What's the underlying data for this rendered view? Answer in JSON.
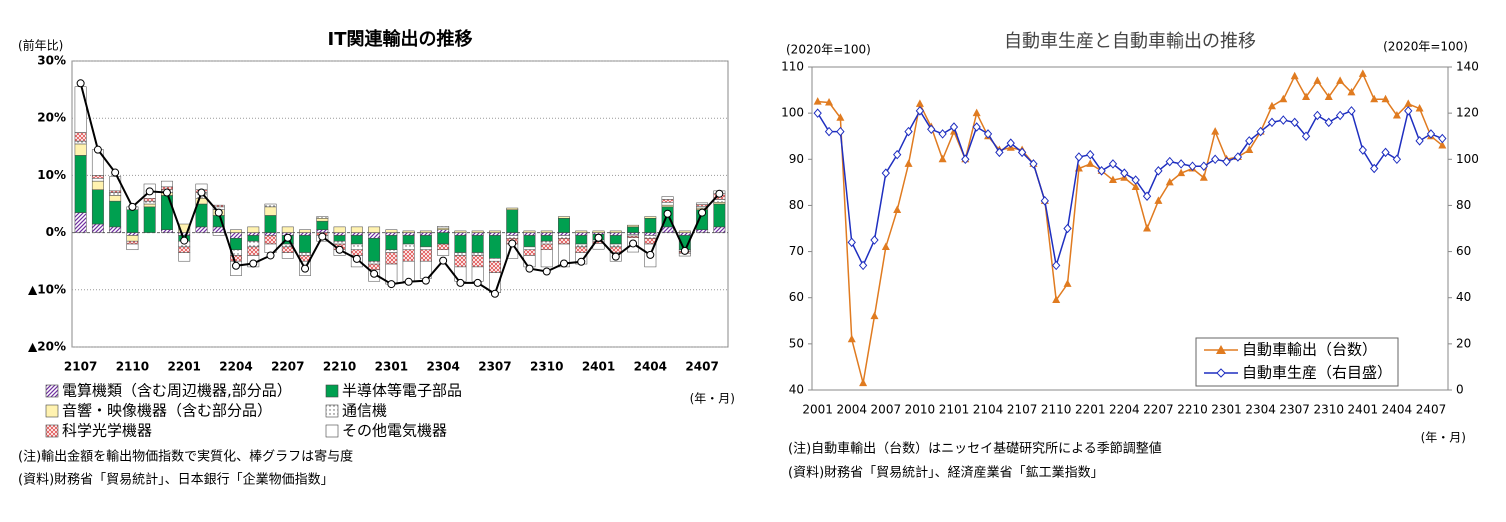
{
  "chart_data": [
    {
      "type": "bar",
      "stacked": true,
      "title": "IT関連輸出の推移",
      "y_label": "(前年比)",
      "x_label": "(年・月)",
      "categories": [
        "2107",
        null,
        null,
        "2110",
        null,
        null,
        "2201",
        null,
        null,
        "2204",
        null,
        null,
        "2207",
        null,
        null,
        "2210",
        null,
        null,
        "2301",
        null,
        null,
        "2304",
        null,
        null,
        "2307",
        null,
        null,
        "2310",
        null,
        null,
        "2401",
        null,
        null,
        "2404",
        null,
        null,
        "2407",
        null
      ],
      "ylim": [
        -20,
        30
      ],
      "yticks": [
        {
          "value": 30,
          "label": "30%"
        },
        {
          "value": 20,
          "label": "20%"
        },
        {
          "value": 10,
          "label": "10%"
        },
        {
          "value": 0,
          "label": "0%"
        },
        {
          "value": -10,
          "label": "▲10%"
        },
        {
          "value": -20,
          "label": "▲20%"
        }
      ],
      "grid": true,
      "series": [
        {
          "name": "電算機類（含む周辺機器,部分品）",
          "color": "#7030a0",
          "pattern": "hatch",
          "values": [
            3.5,
            1.5,
            1,
            -0.5,
            0,
            0.5,
            -0.5,
            1,
            1,
            -1,
            -0.5,
            -0.5,
            -0.5,
            -0.5,
            0.5,
            -0.5,
            -0.5,
            -1,
            -0.5,
            -0.5,
            -0.5,
            0.5,
            -0.5,
            -0.5,
            -0.5,
            -0.5,
            -0.5,
            -0.5,
            -0.5,
            -0.5,
            -0.3,
            -0.5,
            -0.3,
            -0.5,
            1,
            -0.5,
            0.5,
            1
          ]
        },
        {
          "name": "半導体等電子部品",
          "color": "#00a050",
          "pattern": "solid",
          "values": [
            10,
            6,
            4.5,
            4,
            4.5,
            6,
            -1,
            4,
            2,
            -2,
            -1,
            3,
            -1.5,
            -3,
            1.5,
            -1,
            -1.5,
            -4,
            -2.5,
            -1.5,
            -2,
            -2,
            -3,
            -3,
            -4,
            4,
            -2,
            -1,
            2.5,
            -1.5,
            -1,
            -1.5,
            1,
            2.5,
            3.5,
            -2.5,
            3.5,
            4
          ]
        },
        {
          "name": "音響・映像機器（含む部分品）",
          "color": "#fff2b0",
          "pattern": "solid",
          "values": [
            2,
            1.5,
            1,
            -1,
            0.5,
            0.5,
            1.5,
            1,
            1,
            0.5,
            1,
            1.5,
            1,
            0.5,
            0.5,
            1,
            1,
            1,
            0.5,
            0.3,
            0.3,
            0.3,
            0.3,
            0.3,
            0.3,
            0.3,
            0.3,
            0.3,
            0.3,
            0.3,
            0.3,
            0.3,
            0.3,
            0.3,
            0.3,
            0.3,
            0.3,
            0.3
          ]
        },
        {
          "name": "通信機",
          "color": "#555555",
          "pattern": "dots",
          "values": [
            0.5,
            0.5,
            0.5,
            0.5,
            0.5,
            0.5,
            -1,
            1,
            0.5,
            -1,
            -1,
            0.5,
            -0.5,
            -0.5,
            0.3,
            -0.5,
            -1,
            -0.5,
            -0.5,
            -1,
            -0.5,
            0.3,
            -0.5,
            -0.5,
            -0.5,
            -0.5,
            -0.5,
            -0.5,
            -0.5,
            -0.5,
            -0.3,
            -0.5,
            -0.3,
            -0.5,
            0.5,
            -0.3,
            0.3,
            0.5
          ]
        },
        {
          "name": "科学光学機器",
          "color": "#e05050",
          "pattern": "cross",
          "values": [
            1.5,
            0.5,
            0.3,
            -0.5,
            0.5,
            0.5,
            -1,
            0.5,
            0.3,
            -1,
            -1.5,
            -1.5,
            -1,
            -1,
            -0.5,
            -1,
            -1,
            -1,
            -2,
            -2,
            -2,
            -1,
            -2,
            -2,
            -2,
            -1,
            -1,
            -1,
            -1,
            -1,
            -0.3,
            -1,
            -0.3,
            -1,
            0.5,
            -0.3,
            0.3,
            1
          ]
        },
        {
          "name": "その他電気機器",
          "color": "#ffffff",
          "pattern": "solid",
          "values": [
            8,
            4.5,
            2.5,
            -1,
            2.5,
            1,
            -1.5,
            1,
            -0.5,
            -2.5,
            -2,
            -1.5,
            -1,
            -2.5,
            -1,
            -1,
            -2,
            -2,
            -3.5,
            -3.5,
            -3,
            -1,
            -2.5,
            -2.5,
            -3.5,
            -2.5,
            -2,
            -3,
            -4,
            -2,
            -1,
            -1.5,
            -2.5,
            -4,
            0.5,
            -0.5,
            0.3,
            0.5
          ]
        }
      ],
      "total": {
        "type": "line",
        "color": "#000000",
        "values": [
          26.1,
          14.5,
          10.5,
          4.5,
          7.2,
          7,
          -1.4,
          7,
          3.5,
          -5.8,
          -5.4,
          -4,
          -0.9,
          -6.3,
          -0.7,
          -3,
          -4.6,
          -7.2,
          -9,
          -8.6,
          -8.4,
          -4.9,
          -8.8,
          -8.8,
          -10.7,
          -1.9,
          -6.3,
          -6.8,
          -5.4,
          -5.1,
          -0.9,
          -4.2,
          -1.9,
          -3.9,
          3.3,
          -3.2,
          3.5,
          6.8
        ]
      },
      "notes": [
        "(注)輸出金額を輸出物価指数で実質化、棒グラフは寄与度",
        "(資料)財務省「貿易統計」、日本銀行「企業物価指数」"
      ]
    },
    {
      "type": "line",
      "title": "自動車生産と自動車輸出の推移",
      "y_label": "(2020年=100)",
      "y2_label": "(2020年=100)",
      "x_label": "(年・月)",
      "categories": [
        "2001",
        null,
        null,
        "2004",
        null,
        null,
        "2007",
        null,
        null,
        "2010",
        null,
        null,
        "2101",
        null,
        null,
        "2104",
        null,
        null,
        "2107",
        null,
        null,
        "2110",
        null,
        null,
        "2201",
        null,
        null,
        "2204",
        null,
        null,
        "2207",
        null,
        null,
        "2210",
        null,
        null,
        "2301",
        null,
        null,
        "2304",
        null,
        null,
        "2307",
        null,
        null,
        "2310",
        null,
        null,
        "2401",
        null,
        null,
        "2404",
        null,
        null,
        "2407",
        null
      ],
      "ylim": [
        40,
        110
      ],
      "yticks": [
        40,
        50,
        60,
        70,
        80,
        90,
        100,
        110
      ],
      "y2lim": [
        0,
        140
      ],
      "y2ticks": [
        0,
        20,
        40,
        60,
        80,
        100,
        120,
        140
      ],
      "legend": "lower right",
      "series": [
        {
          "name": "自動車輸出（台数）",
          "color": "#e07b20",
          "marker": "triangle",
          "values": [
            102.5,
            102.3,
            99,
            51,
            41.5,
            56,
            71,
            79,
            89,
            102,
            97,
            90,
            96,
            90,
            100,
            95,
            92,
            92.5,
            92,
            89,
            81,
            59.5,
            63,
            88,
            89,
            87.5,
            85.5,
            86,
            84,
            75,
            81,
            85,
            87,
            88,
            86,
            96,
            90,
            90.5,
            92,
            96,
            101.5,
            103,
            108,
            103.5,
            107,
            103.5,
            107,
            104.5,
            108.5,
            103,
            103,
            99.5,
            102,
            101,
            95,
            93
          ]
        },
        {
          "name": "自動車生産（右目盛）",
          "color": "#1f2fc0",
          "marker": "diamond",
          "axis": "y2",
          "values": [
            120,
            112,
            112,
            64,
            54,
            65,
            94,
            102,
            112,
            121,
            113,
            111,
            114,
            100,
            114,
            111,
            103,
            107,
            103,
            98,
            82,
            54,
            70,
            101,
            102,
            95,
            98,
            94,
            91,
            84,
            95,
            99,
            98,
            97,
            97,
            100,
            99,
            101,
            108,
            112,
            116,
            117,
            116,
            110,
            119,
            116,
            119,
            121,
            104,
            96,
            103,
            100,
            121,
            108,
            111,
            109
          ]
        }
      ],
      "notes": [
        "(注)自動車輸出（台数）はニッセイ基礎研究所による季節調整値",
        "(資料)財務省「貿易統計」、経済産業省「鉱工業指数」"
      ]
    }
  ]
}
